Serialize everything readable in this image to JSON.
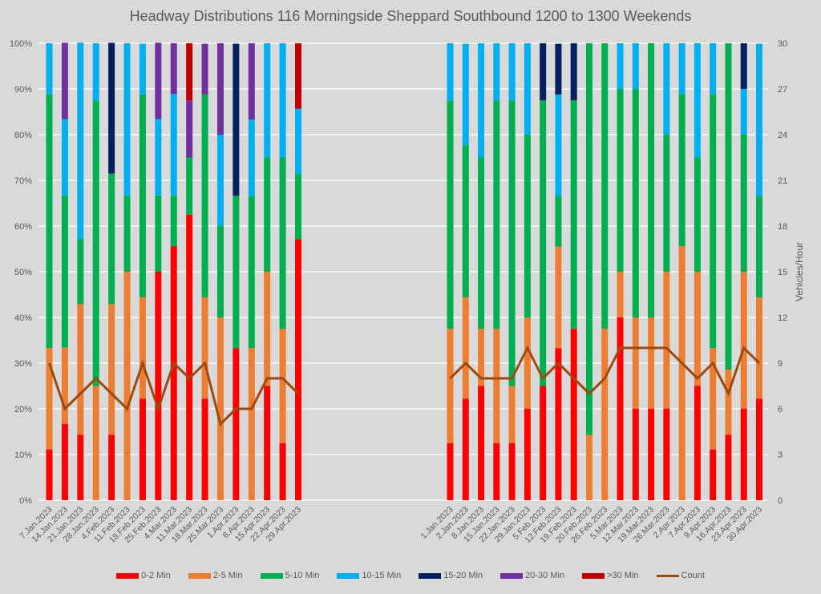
{
  "chart_data": {
    "type": "bar",
    "subtype": "stacked-percent-with-line",
    "title": "Headway Distributions 116 Morningside  Sheppard Southbound 1200 to 1300 Weekends",
    "y_left": {
      "label": "",
      "ticks": [
        "0%",
        "10%",
        "20%",
        "30%",
        "40%",
        "50%",
        "60%",
        "70%",
        "80%",
        "90%",
        "100%"
      ],
      "range": [
        0,
        100
      ]
    },
    "y_right": {
      "label": "Vehicles/Hour",
      "ticks": [
        "0",
        "3",
        "6",
        "9",
        "12",
        "15",
        "18",
        "21",
        "24",
        "27",
        "30"
      ],
      "range": [
        0,
        30
      ]
    },
    "grid": true,
    "legend_position": "bottom",
    "series_meta": [
      {
        "name": "0-2 Min",
        "color": "#ff0000"
      },
      {
        "name": "2-5 Min",
        "color": "#ed7d31"
      },
      {
        "name": "5-10 Min",
        "color": "#00b050"
      },
      {
        "name": "10-15 Min",
        "color": "#00b0f0"
      },
      {
        "name": "15-20 Min",
        "color": "#002060"
      },
      {
        "name": "20-30 Min",
        "color": "#7030a0"
      },
      {
        "name": ">30 Min",
        "color": "#c00000"
      },
      {
        "name": "Count",
        "color": "#9e4a0f",
        "kind": "line"
      }
    ],
    "groups": [
      {
        "categories": [
          "7.Jan.2023",
          "14.Jan.2023",
          "21.Jan.2023",
          "28.Jan.2023",
          "4.Feb.2023",
          "11.Feb.2023",
          "18.Feb.2023",
          "25.Feb.2023",
          "4.Mar.2023",
          "11.Mar.2023",
          "18.Mar.2023",
          "25.Mar.2023",
          "1.Apr.2023",
          "8.Apr.2023",
          "15.Apr.2023",
          "22.Apr.2023",
          "29.Apr.2023"
        ],
        "series": [
          {
            "name": "0-2 Min",
            "values": [
              11.1,
              16.7,
              14.3,
              0,
              14.3,
              0,
              22.2,
              50,
              55.6,
              62.5,
              22.2,
              0,
              33.3,
              0,
              25,
              12.5,
              57.1
            ]
          },
          {
            "name": "2-5 Min",
            "values": [
              22.2,
              16.7,
              28.6,
              25,
              28.6,
              50,
              22.2,
              0,
              0,
              0,
              22.2,
              40,
              0,
              33.3,
              25,
              25,
              0
            ]
          },
          {
            "name": "5-10 Min",
            "values": [
              55.6,
              33.3,
              14.3,
              62.5,
              28.6,
              16.7,
              44.4,
              16.7,
              11.1,
              12.5,
              44.4,
              20,
              33.3,
              33.3,
              25,
              37.5,
              14.3
            ]
          },
          {
            "name": "10-15 Min",
            "values": [
              11.1,
              16.7,
              42.9,
              12.5,
              0,
              33.3,
              11.1,
              16.7,
              22.2,
              0,
              0,
              20,
              0,
              16.7,
              25,
              25,
              14.3
            ]
          },
          {
            "name": "15-20 Min",
            "values": [
              0,
              0,
              0,
              0,
              28.6,
              0,
              0,
              0,
              0,
              0,
              0,
              0,
              33.3,
              0,
              0,
              0,
              0
            ]
          },
          {
            "name": "20-30 Min",
            "values": [
              0,
              16.7,
              0,
              0,
              0,
              0,
              0,
              16.7,
              11.1,
              12.5,
              11.1,
              20,
              0,
              16.7,
              0,
              0,
              0
            ]
          },
          {
            "name": ">30 Min",
            "values": [
              0,
              0,
              0,
              0,
              0,
              0,
              0,
              0,
              0,
              12.5,
              0,
              0,
              0,
              0,
              0,
              0,
              14.3
            ]
          },
          {
            "name": "Count",
            "values": [
              9,
              6,
              7,
              8,
              7,
              6,
              9,
              6,
              9,
              8,
              9,
              5,
              6,
              6,
              8,
              8,
              7
            ]
          }
        ]
      },
      {
        "categories": [
          "1.Jan.2023",
          "2.Jan.2023",
          "8.Jan.2023",
          "15.Jan.2023",
          "22.Jan.2023",
          "29.Jan.2023",
          "5.Feb.2023",
          "12.Feb.2023",
          "19.Feb.2023",
          "20.Feb.2023",
          "26.Feb.2023",
          "5.Mar.2023",
          "12.Mar.2023",
          "19.Mar.2023",
          "26.Mar.2023",
          "2.Apr.2023",
          "7.Apr.2023",
          "9.Apr.2023",
          "16.Apr.2023",
          "23.Apr.2023",
          "30.Apr.2023"
        ],
        "series": [
          {
            "name": "0-2 Min",
            "values": [
              12.5,
              22.2,
              25,
              12.5,
              12.5,
              20,
              25,
              33.3,
              37.5,
              0,
              0,
              40,
              20,
              20,
              20,
              0,
              25,
              11.1,
              14.3,
              20,
              22.2
            ]
          },
          {
            "name": "2-5 Min",
            "values": [
              25,
              22.2,
              12.5,
              25,
              12.5,
              20,
              0,
              22.2,
              0,
              14.3,
              37.5,
              10,
              20,
              20,
              30,
              55.6,
              25,
              22.2,
              14.3,
              30,
              22.2
            ]
          },
          {
            "name": "5-10 Min",
            "values": [
              50,
              33.3,
              37.5,
              50,
              62.5,
              40,
              62.5,
              11.1,
              50,
              85.7,
              62.5,
              40,
              50,
              60,
              30,
              33.3,
              25,
              55.6,
              71.4,
              30,
              22.2
            ]
          },
          {
            "name": "10-15 Min",
            "values": [
              12.5,
              22.2,
              25,
              12.5,
              12.5,
              20,
              0,
              22.2,
              0,
              0,
              0,
              10,
              10,
              0,
              20,
              11.1,
              25,
              11.1,
              0,
              10,
              33.3
            ]
          },
          {
            "name": "15-20 Min",
            "values": [
              0,
              0,
              0,
              0,
              0,
              0,
              12.5,
              11.1,
              12.5,
              0,
              0,
              0,
              0,
              0,
              0,
              0,
              0,
              0,
              0,
              10,
              0
            ]
          },
          {
            "name": "20-30 Min",
            "values": [
              0,
              0,
              0,
              0,
              0,
              0,
              0,
              0,
              0,
              0,
              0,
              0,
              0,
              0,
              0,
              0,
              0,
              0,
              0,
              0,
              0
            ]
          },
          {
            "name": ">30 Min",
            "values": [
              0,
              0,
              0,
              0,
              0,
              0,
              0,
              0,
              0,
              0,
              0,
              0,
              0,
              0,
              0,
              0,
              0,
              0,
              0,
              0,
              0
            ]
          },
          {
            "name": "Count",
            "values": [
              8,
              9,
              8,
              8,
              8,
              10,
              8,
              9,
              8,
              7,
              8,
              10,
              10,
              10,
              10,
              9,
              8,
              9,
              7,
              10,
              9
            ]
          }
        ]
      }
    ]
  }
}
